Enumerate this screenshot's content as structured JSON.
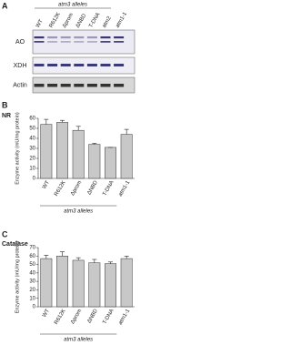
{
  "panel_a": {
    "label": "A",
    "header": "atm3 alleles",
    "lanes": [
      "WT",
      "R612K",
      "Δprom",
      "ΔNBD",
      "T-DNA",
      "atm2",
      "atm1-1"
    ],
    "rows": [
      "AO",
      "XDH",
      "Actin"
    ]
  },
  "chart_data": [
    {
      "type": "bar",
      "panel": "B",
      "title": "NR",
      "ylabel": "Enzyme activity (mU/mg protein)",
      "categories": [
        "WT",
        "R612K",
        "Δprom",
        "ΔNBD",
        "T-DNA",
        "atm1-1"
      ],
      "group_label": "atm3 alleles",
      "values": [
        54,
        56,
        48,
        34,
        31,
        44
      ],
      "errors": [
        5,
        2,
        4,
        1,
        0,
        5
      ],
      "color": "#c8c8c8",
      "ylim": [
        0,
        60
      ],
      "yticks": [
        0,
        10,
        20,
        30,
        40,
        50,
        60
      ]
    },
    {
      "type": "bar",
      "panel": "C",
      "title": "Catalase",
      "ylabel": "Enzyme activity (mU/mg protein)",
      "categories": [
        "WT",
        "R612K",
        "Δprom",
        "ΔNBD",
        "T-DNA",
        "atm1-1"
      ],
      "group_label": "atm3 alleles",
      "values": [
        57,
        60,
        55,
        52,
        51,
        57
      ],
      "errors": [
        4,
        5,
        3,
        4,
        2,
        3
      ],
      "color": "#c8c8c8",
      "ylim": [
        0,
        70
      ],
      "yticks": [
        0,
        10,
        20,
        30,
        40,
        50,
        60,
        70
      ]
    }
  ]
}
